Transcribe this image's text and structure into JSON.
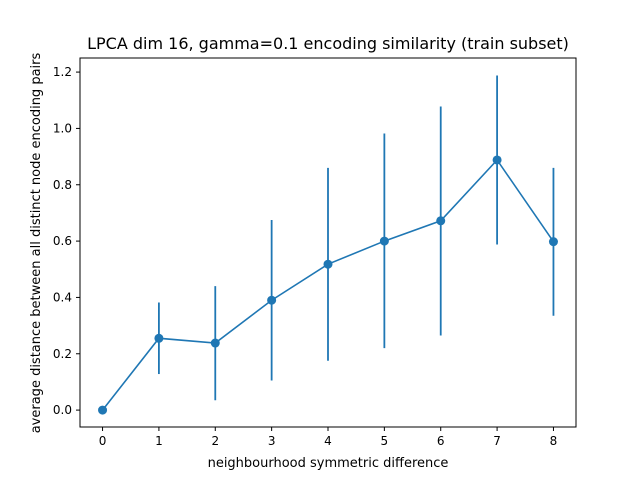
{
  "chart_data": {
    "type": "line",
    "title": "LPCA dim 16, gamma=0.1 encoding similarity (train subset)",
    "xlabel": "neighbourhood symmetric difference",
    "ylabel": "average distance between all distinct node encoding pairs",
    "xlim": [
      -0.4,
      8.4
    ],
    "ylim": [
      -0.06,
      1.25
    ],
    "x_ticks": [
      0,
      1,
      2,
      3,
      4,
      5,
      6,
      7,
      8
    ],
    "y_ticks": [
      0.0,
      0.2,
      0.4,
      0.6,
      0.8,
      1.0,
      1.2
    ],
    "grid": false,
    "color": "#1f77b4",
    "series": [
      {
        "x": [
          0,
          1,
          2,
          3,
          4,
          5,
          6,
          7,
          8
        ],
        "y": [
          0.0,
          0.255,
          0.238,
          0.39,
          0.518,
          0.6,
          0.672,
          0.888,
          0.598
        ],
        "error_low": [
          0.0,
          0.128,
          0.035,
          0.105,
          0.175,
          0.22,
          0.265,
          0.588,
          0.335
        ],
        "error_high": [
          0.0,
          0.382,
          0.44,
          0.675,
          0.86,
          0.982,
          1.078,
          1.188,
          0.86
        ]
      }
    ]
  }
}
